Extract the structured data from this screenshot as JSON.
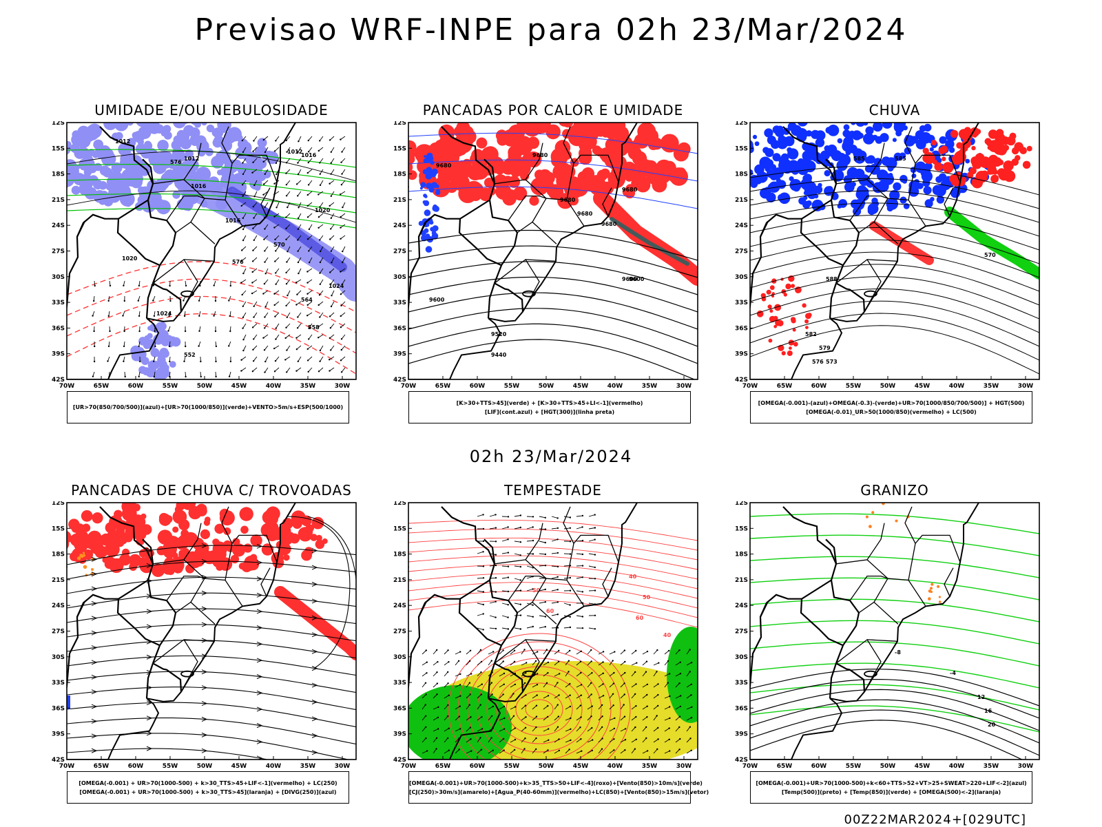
{
  "title": "Previsao WRF-INPE  para 02h 23/Mar/2024",
  "mid_time": "02h 23/Mar/2024",
  "footer": "00Z22MAR2024+[029UTC]",
  "lat_labels": [
    "12S",
    "15S",
    "18S",
    "21S",
    "24S",
    "27S",
    "30S",
    "33S",
    "36S",
    "39S",
    "42S"
  ],
  "lon_labels": [
    "70W",
    "65W",
    "60W",
    "55W",
    "50W",
    "45W",
    "40W",
    "35W",
    "30W"
  ],
  "panels": [
    {
      "title": "UMIDADE E/OU NEBULOSIDADE",
      "legend": [
        "[UR>70(850/700/500)](azul)+[UR>70(1000/850)](verde)+VENTO>5m/s+ESP(500/1000)"
      ],
      "contour_labels": [
        "1012",
        "1012",
        "1016",
        "1016",
        "1020",
        "1024",
        "576",
        "576",
        "570",
        "564",
        "558",
        "552",
        "1012",
        "1016",
        "1020",
        "1024"
      ],
      "colors": {
        "fill1": "#8f8ff5",
        "fill2": "#4b4be0",
        "green": "#00c000",
        "red": "#ff3030",
        "line": "#000000"
      }
    },
    {
      "title": "PANCADAS POR CALOR E UMIDADE",
      "legend": [
        "[K>30+TTS>45](verde)  +  [K>30+TTS>45+LI<-1](vermelho)",
        "[LIF](cont.azul)  +  [HGT(300)](linha preta)"
      ],
      "contour_labels": [
        "9680",
        "9680",
        "9680",
        "9680",
        "9680",
        "9680",
        "9600",
        "9600",
        "9600",
        "9520",
        "9440"
      ],
      "colors": {
        "fill1": "#ff3030",
        "fill2": "#306060",
        "blue": "#2040ff",
        "line": "#000000"
      }
    },
    {
      "title": "CHUVA",
      "legend": [
        "[OMEGA(-0.001)-(azul)+OMEGA(-0.3)-(verde)+UR>70(1000/850/700/500)] + HGT(500)",
        "[OMEGA(-0.01)_UR>50(1000/850)(vermelho) + LC(500)"
      ],
      "contour_labels": [
        "585",
        "585",
        "588",
        "582",
        "579",
        "576",
        "573",
        "570"
      ],
      "colors": {
        "blue": "#1030ff",
        "green": "#10d010",
        "red": "#ff2020",
        "line": "#000000"
      }
    },
    {
      "title": "PANCADAS DE CHUVA C/ TROVOADAS",
      "legend": [
        "[OMEGA(-0.001) + UR>70(1000-500) + k>30_TTS>45+LIF<-1](vermelho) + LC(250)",
        "[OMEGA(-0.001) + UR>70(1000-500) + k>30_TTS>45](laranja) + [DIVG(250)](azul)"
      ],
      "contour_labels": [],
      "colors": {
        "red": "#ff3030",
        "orange": "#ff9020",
        "blue": "#2040ff",
        "line": "#000000"
      }
    },
    {
      "title": "TEMPESTADE",
      "legend": [
        "[OMEGA(-0.001)+UR>70(1000-500)+k>35_TTS>50+LIF<-4](roxo)+[Vento(850)>10m/s](verde)",
        "[CJ(250)>30m/s](amarelo)+[Agua_P(40-60mm)](vermelho)+LC(850)+[Vento(850)>15m/s](vetor)"
      ],
      "contour_labels": [
        "40",
        "50",
        "60",
        "40",
        "50",
        "60"
      ],
      "colors": {
        "yellow": "#e6dc2a",
        "green": "#10c010",
        "red": "#ff4040",
        "line": "#000000"
      }
    },
    {
      "title": "GRANIZO",
      "legend": [
        "[OMEGA(-0.001)+UR>70(1000-500)+k<60+TTS>52+VT>25+SWEAT>220+LIF<-2](azul)",
        "[Temp(500)](preto) + [Temp(850)](verde) + [OMEGA(500)<-2](laranja)"
      ],
      "contour_labels": [
        "12",
        "16",
        "20",
        "-8",
        "-4"
      ],
      "colors": {
        "green": "#10d010",
        "orange": "#ff8020",
        "blue": "#2040ff",
        "line": "#000000"
      }
    }
  ]
}
